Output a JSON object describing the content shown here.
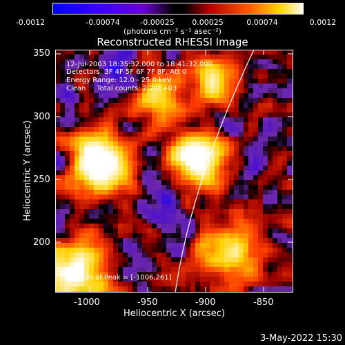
{
  "colorbar": {
    "ticks": [
      "-0.0012",
      "-0.00074",
      "-0.00025",
      "0.00025",
      "0.00074",
      "0.0012"
    ],
    "units": "(photons cm⁻² s⁻¹ asec⁻²)"
  },
  "title": "Reconstructed RHESSI Image",
  "annotations": {
    "time_range": "12-Jul-2003 18:35:32.000 to 18:41:32.000",
    "detectors": "Detectors: 3F 4F 5F 6F 7F 8F, Att 0",
    "energy_range": "Energy Range: 12.0 - 25.0 keV",
    "clean": "Clean     Total counts: 2.29E+03",
    "peak": "Position of Peak = [-1006,261]"
  },
  "axes": {
    "xlabel": "Heliocentric X (arcsec)",
    "ylabel": "Heliocentric Y (arcsec)",
    "xticks": [
      "-1000",
      "-950",
      "-900",
      "-850"
    ],
    "yticks": [
      "350",
      "300",
      "250",
      "200"
    ]
  },
  "footer": {
    "date": "3-May-2022 15:30"
  },
  "colors": {
    "limb": "#ffffff",
    "low": "#0000ff",
    "mid": "#000000",
    "high": "#ffffff"
  }
}
